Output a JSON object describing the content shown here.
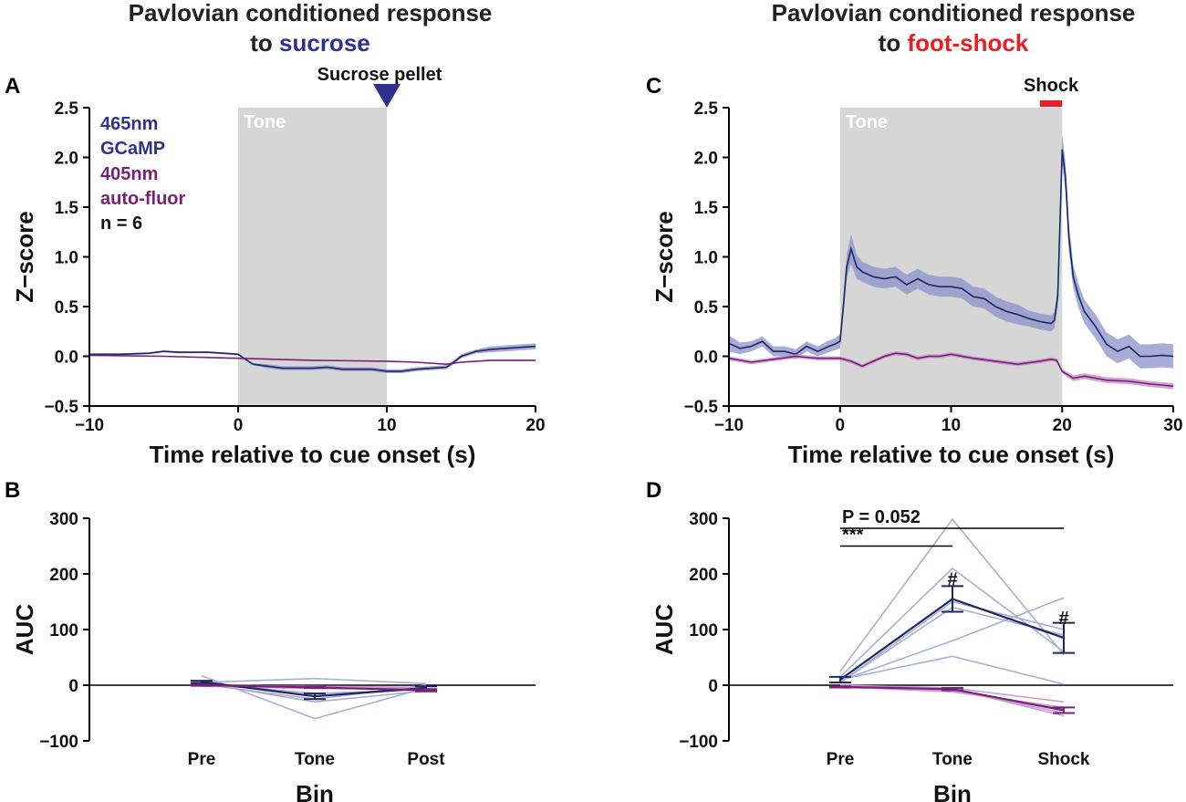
{
  "colors": {
    "gcamp": "#1f2566",
    "gcamp_band": "#8a92c8",
    "gcamp_light": "#a9aed4",
    "autofluor": "#7a1f78",
    "autofluor_band": "#c48ac6",
    "autofluor_light": "#c99ed0",
    "sucrose": "#2e3192",
    "shock": "#ed1c24",
    "tone_shade": "#d6d6d6"
  },
  "panel_titles": {
    "left_line1": "Pavlovian conditioned response",
    "left_line2_prefix": "to ",
    "left_line2_highlight": "sucrose",
    "right_line1": "Pavlovian conditioned response",
    "right_line2_prefix": "to ",
    "right_line2_highlight": "foot-shock"
  },
  "legend": {
    "line1": "465nm",
    "line2": "GCaMP",
    "line3": "405nm",
    "line4": "auto-fluor",
    "line5": "n = 6"
  },
  "chart_data": [
    {
      "panel": "A",
      "type": "line",
      "tone_label": "Tone",
      "tone_window": [
        0,
        10
      ],
      "event_label": "Sucrose pellet",
      "event_time": 10,
      "xlabel": "Time relative to cue onset (s)",
      "ylabel": "Z−score",
      "xlim": [
        -10,
        20
      ],
      "ylim": [
        -0.5,
        2.5
      ],
      "xticks": [
        -10,
        0,
        10,
        20
      ],
      "xtick_labels": [
        "−10",
        "0",
        "10",
        "20"
      ],
      "yticks": [
        -0.5,
        0.0,
        0.5,
        1.0,
        1.5,
        2.0,
        2.5
      ],
      "ytick_labels": [
        "−0.5",
        "0.0",
        "0.5",
        "1.0",
        "1.5",
        "2.0",
        "2.5"
      ],
      "series": [
        {
          "name": "465nm GCaMP",
          "x": [
            -10,
            -8,
            -6,
            -5,
            -4,
            -2,
            -1,
            0,
            0.5,
            1,
            2,
            3,
            4,
            5,
            6,
            7,
            8,
            9,
            10,
            11,
            12,
            13,
            14,
            14.5,
            15,
            16,
            17,
            18,
            19,
            20
          ],
          "y": [
            0.02,
            0.02,
            0.03,
            0.05,
            0.04,
            0.04,
            0.03,
            0.02,
            -0.03,
            -0.08,
            -0.1,
            -0.12,
            -0.12,
            -0.12,
            -0.11,
            -0.13,
            -0.13,
            -0.13,
            -0.15,
            -0.15,
            -0.13,
            -0.12,
            -0.11,
            -0.06,
            0.0,
            0.05,
            0.07,
            0.08,
            0.09,
            0.1
          ],
          "err": [
            0.01,
            0.01,
            0.01,
            0.01,
            0.01,
            0.01,
            0.01,
            0.01,
            0.01,
            0.01,
            0.02,
            0.02,
            0.02,
            0.02,
            0.02,
            0.02,
            0.02,
            0.02,
            0.02,
            0.02,
            0.02,
            0.02,
            0.02,
            0.02,
            0.02,
            0.02,
            0.03,
            0.03,
            0.03,
            0.03
          ]
        },
        {
          "name": "405nm auto-fluor",
          "x": [
            -10,
            -5,
            0,
            5,
            10,
            12,
            14,
            15,
            17,
            20
          ],
          "y": [
            0.01,
            0.0,
            -0.02,
            -0.04,
            -0.05,
            -0.06,
            -0.08,
            -0.06,
            -0.04,
            -0.04
          ],
          "err": [
            0.005,
            0.005,
            0.005,
            0.005,
            0.005,
            0.005,
            0.005,
            0.005,
            0.005,
            0.005
          ]
        }
      ]
    },
    {
      "panel": "C",
      "type": "line",
      "tone_label": "Tone",
      "tone_window": [
        0,
        20
      ],
      "event_label": "Shock",
      "event_window": [
        18,
        20
      ],
      "xlabel": "Time relative to cue onset (s)",
      "ylabel": "Z−score",
      "xlim": [
        -10,
        30
      ],
      "ylim": [
        -0.5,
        2.5
      ],
      "xticks": [
        -10,
        0,
        10,
        20,
        30
      ],
      "xtick_labels": [
        "−10",
        "0",
        "10",
        "20",
        "30"
      ],
      "yticks": [
        -0.5,
        0.0,
        0.5,
        1.0,
        1.5,
        2.0,
        2.5
      ],
      "ytick_labels": [
        "−0.5",
        "0.0",
        "0.5",
        "1.0",
        "1.5",
        "2.0",
        "2.5"
      ],
      "series": [
        {
          "name": "465nm GCaMP",
          "x": [
            -10,
            -9,
            -8,
            -7,
            -6.5,
            -6,
            -5,
            -4,
            -3,
            -2,
            -1,
            -0.5,
            0,
            0.3,
            0.6,
            1,
            1.5,
            2,
            3,
            4,
            5,
            6,
            7,
            8,
            9,
            10,
            11,
            12,
            13,
            14,
            15,
            16,
            17,
            18,
            19,
            19.3,
            19.6,
            20,
            20.3,
            20.6,
            21,
            21.5,
            22,
            23,
            24,
            25,
            26,
            27,
            28,
            29,
            30
          ],
          "y": [
            0.13,
            0.08,
            0.1,
            0.15,
            0.1,
            0.05,
            0.05,
            0.02,
            0.1,
            0.05,
            0.1,
            0.12,
            0.15,
            0.5,
            0.9,
            1.08,
            0.9,
            0.85,
            0.8,
            0.78,
            0.8,
            0.72,
            0.78,
            0.72,
            0.7,
            0.7,
            0.68,
            0.6,
            0.58,
            0.5,
            0.45,
            0.42,
            0.38,
            0.35,
            0.33,
            0.36,
            0.6,
            2.08,
            1.8,
            1.2,
            0.8,
            0.6,
            0.45,
            0.3,
            0.12,
            0.05,
            0.1,
            0.0,
            0.0,
            0.01,
            0.0
          ],
          "err": [
            0.08,
            0.06,
            0.05,
            0.05,
            0.05,
            0.05,
            0.05,
            0.05,
            0.05,
            0.05,
            0.06,
            0.06,
            0.07,
            0.1,
            0.12,
            0.15,
            0.12,
            0.1,
            0.1,
            0.1,
            0.1,
            0.1,
            0.1,
            0.1,
            0.1,
            0.1,
            0.1,
            0.1,
            0.1,
            0.1,
            0.1,
            0.1,
            0.08,
            0.08,
            0.08,
            0.08,
            0.1,
            0.15,
            0.15,
            0.15,
            0.12,
            0.12,
            0.12,
            0.12,
            0.12,
            0.12,
            0.12,
            0.12,
            0.12,
            0.12,
            0.12
          ]
        },
        {
          "name": "405nm auto-fluor",
          "x": [
            -10,
            -8,
            -6,
            -4,
            -2,
            0,
            1,
            2,
            3,
            4,
            5,
            6,
            7,
            8,
            9,
            10,
            12,
            14,
            16,
            18,
            19,
            19.5,
            20,
            21,
            22,
            24,
            26,
            28,
            30
          ],
          "y": [
            -0.02,
            -0.06,
            -0.03,
            0.0,
            -0.02,
            -0.02,
            -0.05,
            -0.1,
            -0.05,
            0.0,
            0.03,
            0.02,
            -0.02,
            0.0,
            0.0,
            0.02,
            -0.02,
            -0.05,
            -0.08,
            -0.05,
            -0.03,
            -0.04,
            -0.15,
            -0.22,
            -0.2,
            -0.24,
            -0.25,
            -0.28,
            -0.3
          ],
          "err": [
            0.02,
            0.02,
            0.02,
            0.02,
            0.02,
            0.02,
            0.02,
            0.02,
            0.02,
            0.02,
            0.02,
            0.02,
            0.02,
            0.02,
            0.02,
            0.02,
            0.02,
            0.02,
            0.02,
            0.02,
            0.02,
            0.02,
            0.02,
            0.03,
            0.03,
            0.03,
            0.03,
            0.03,
            0.03
          ]
        }
      ]
    },
    {
      "panel": "B",
      "type": "line",
      "xlabel": "Bin",
      "ylabel": "AUC",
      "categories": [
        "Pre",
        "Tone",
        "Post"
      ],
      "category_colors": [
        "#111111",
        "#111111",
        "#2e3192"
      ],
      "ylim": [
        -100,
        300
      ],
      "yticks": [
        -100,
        0,
        100,
        200,
        300
      ],
      "ytick_labels": [
        "−100",
        "0",
        "100",
        "200",
        "300"
      ],
      "individuals_gcamp": [
        [
          17,
          -60,
          -5
        ],
        [
          5,
          12,
          3
        ],
        [
          4,
          -30,
          -10
        ],
        [
          6,
          -20,
          -5
        ],
        [
          2,
          -25,
          0
        ],
        [
          3,
          -15,
          -8
        ]
      ],
      "individuals_auto": [
        [
          1,
          -3,
          -5
        ],
        [
          0,
          -5,
          -8
        ],
        [
          -1,
          -2,
          -4
        ],
        [
          1,
          -4,
          -6
        ],
        [
          -2,
          -6,
          -7
        ],
        [
          0,
          -3,
          -5
        ]
      ],
      "series": [
        {
          "name": "465nm GCaMP",
          "values": [
            6,
            -20,
            -5
          ],
          "err": [
            2,
            5,
            3
          ]
        },
        {
          "name": "405nm auto-fluor",
          "values": [
            0,
            -4,
            -9
          ],
          "err": [
            1,
            1,
            2
          ]
        }
      ],
      "significance": []
    },
    {
      "panel": "D",
      "type": "line",
      "xlabel": "Bin",
      "ylabel": "AUC",
      "categories": [
        "Pre",
        "Tone",
        "Shock"
      ],
      "category_colors": [
        "#111111",
        "#111111",
        "#ed1c24"
      ],
      "ylim": [
        -100,
        300
      ],
      "yticks": [
        -100,
        0,
        100,
        200,
        300
      ],
      "ytick_labels": [
        "−100",
        "0",
        "100",
        "200",
        "300"
      ],
      "individuals_gcamp": [
        [
          25,
          298,
          55
        ],
        [
          15,
          210,
          60
        ],
        [
          5,
          150,
          100
        ],
        [
          10,
          52,
          2
        ],
        [
          8,
          80,
          157
        ],
        [
          5,
          140,
          90
        ]
      ],
      "individuals_auto": [
        [
          -2,
          -10,
          -45
        ],
        [
          -4,
          -8,
          -50
        ],
        [
          0,
          -5,
          -30
        ],
        [
          -3,
          -12,
          -40
        ],
        [
          -5,
          -6,
          -55
        ],
        [
          -1,
          -9,
          -42
        ]
      ],
      "series": [
        {
          "name": "465nm GCaMP",
          "values": [
            10,
            155,
            85
          ],
          "err": [
            5,
            23,
            27
          ]
        },
        {
          "name": "405nm auto-fluor",
          "values": [
            -3,
            -7,
            -45
          ],
          "err": [
            1,
            2,
            5
          ]
        }
      ],
      "significance": [
        {
          "label": "P = 0.052",
          "from": "Pre",
          "to": "Shock",
          "y": 282
        },
        {
          "label": "***",
          "from": "Pre",
          "to": "Tone",
          "y": 250
        }
      ],
      "markers": [
        {
          "label": "#",
          "category": "Tone",
          "y": 193
        },
        {
          "label": "#",
          "category": "Shock",
          "y": 123
        }
      ]
    }
  ]
}
